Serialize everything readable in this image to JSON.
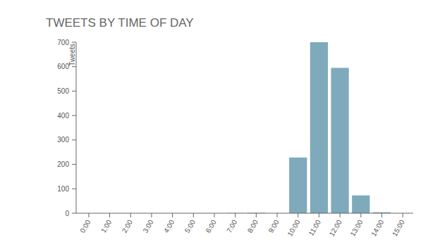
{
  "chart_data": {
    "type": "bar",
    "title": "TWEETS BY TIME OF DAY",
    "y_label": "Tweets",
    "categories": [
      "0:00",
      "1:00",
      "2:00",
      "3:00",
      "4:00",
      "5:00",
      "6:00",
      "7:00",
      "8:00",
      "9:00",
      "10:00",
      "11:00",
      "12:00",
      "13:00",
      "14:00",
      "15:00"
    ],
    "values": [
      0,
      0,
      0,
      0,
      0,
      0,
      0,
      1,
      2,
      0,
      228,
      700,
      595,
      73,
      4,
      0
    ],
    "color": "#7eaabb",
    "ylim": [
      0,
      700
    ],
    "yticks": [
      0,
      100,
      200,
      300,
      400,
      500,
      600,
      700
    ],
    "grid": false
  }
}
